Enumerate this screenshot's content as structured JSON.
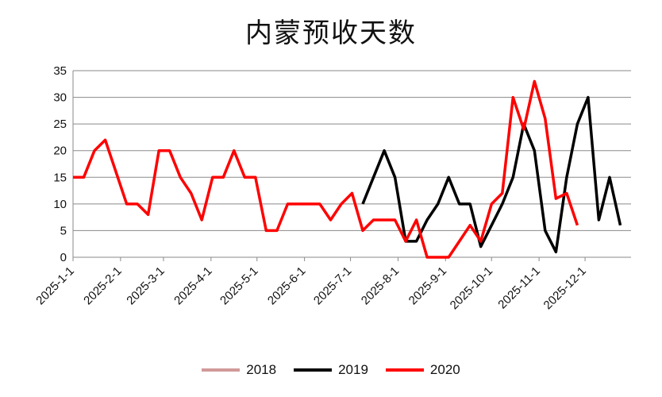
{
  "chart_data": {
    "type": "line",
    "title": "内蒙预收天数",
    "xlabel": "",
    "ylabel": "",
    "ylim": [
      0,
      35
    ],
    "yticks": [
      0,
      5,
      10,
      15,
      20,
      25,
      30,
      35
    ],
    "x_ticks": [
      "2025-1-1",
      "2025-2-1",
      "2025-3-1",
      "2025-4-1",
      "2025-5-1",
      "2025-6-1",
      "2025-7-1",
      "2025-8-1",
      "2025-9-1",
      "2025-10-1",
      "2025-11-1",
      "2025-12-1"
    ],
    "grid": "horizontal",
    "legend_position": "bottom",
    "series": [
      {
        "name": "2018",
        "color": "#d19a9a",
        "points": []
      },
      {
        "name": "2019",
        "color": "#000000",
        "points": [
          [
            "2025-7-9",
            10
          ],
          [
            "2025-7-16",
            15
          ],
          [
            "2025-7-23",
            20
          ],
          [
            "2025-7-30",
            15
          ],
          [
            "2025-8-6",
            3
          ],
          [
            "2025-8-13",
            3
          ],
          [
            "2025-8-20",
            7
          ],
          [
            "2025-8-27",
            10
          ],
          [
            "2025-9-3",
            15
          ],
          [
            "2025-9-10",
            10
          ],
          [
            "2025-9-17",
            10
          ],
          [
            "2025-9-24",
            2
          ],
          [
            "2025-10-1",
            6
          ],
          [
            "2025-10-8",
            10
          ],
          [
            "2025-10-15",
            15
          ],
          [
            "2025-10-22",
            25
          ],
          [
            "2025-10-29",
            20
          ],
          [
            "2025-11-5",
            5
          ],
          [
            "2025-11-12",
            1
          ],
          [
            "2025-11-19",
            15
          ],
          [
            "2025-11-26",
            25
          ],
          [
            "2025-12-3",
            30
          ],
          [
            "2025-12-10",
            7
          ],
          [
            "2025-12-17",
            15
          ],
          [
            "2025-12-24",
            6
          ]
        ]
      },
      {
        "name": "2020",
        "color": "#ff0000",
        "points": [
          [
            "2025-1-1",
            15
          ],
          [
            "2025-1-8",
            15
          ],
          [
            "2025-1-15",
            20
          ],
          [
            "2025-1-22",
            22
          ],
          [
            "2025-1-29",
            16
          ],
          [
            "2025-2-5",
            10
          ],
          [
            "2025-2-12",
            10
          ],
          [
            "2025-2-19",
            8
          ],
          [
            "2025-2-26",
            20
          ],
          [
            "2025-3-5",
            20
          ],
          [
            "2025-3-12",
            15
          ],
          [
            "2025-3-19",
            12
          ],
          [
            "2025-3-26",
            7
          ],
          [
            "2025-4-2",
            15
          ],
          [
            "2025-4-9",
            15
          ],
          [
            "2025-4-16",
            20
          ],
          [
            "2025-4-23",
            15
          ],
          [
            "2025-4-30",
            15
          ],
          [
            "2025-5-7",
            5
          ],
          [
            "2025-5-14",
            5
          ],
          [
            "2025-5-21",
            10
          ],
          [
            "2025-5-28",
            10
          ],
          [
            "2025-6-4",
            10
          ],
          [
            "2025-6-11",
            10
          ],
          [
            "2025-6-18",
            7
          ],
          [
            "2025-6-25",
            10
          ],
          [
            "2025-7-2",
            12
          ],
          [
            "2025-7-9",
            5
          ],
          [
            "2025-7-16",
            7
          ],
          [
            "2025-7-23",
            7
          ],
          [
            "2025-7-30",
            7
          ],
          [
            "2025-8-6",
            3
          ],
          [
            "2025-8-13",
            7
          ],
          [
            "2025-8-20",
            0
          ],
          [
            "2025-8-27",
            0
          ],
          [
            "2025-9-3",
            0
          ],
          [
            "2025-9-10",
            3
          ],
          [
            "2025-9-17",
            6
          ],
          [
            "2025-9-24",
            3
          ],
          [
            "2025-10-1",
            10
          ],
          [
            "2025-10-8",
            12
          ],
          [
            "2025-10-15",
            30
          ],
          [
            "2025-10-22",
            24
          ],
          [
            "2025-10-29",
            33
          ],
          [
            "2025-11-5",
            26
          ],
          [
            "2025-11-12",
            11
          ],
          [
            "2025-11-19",
            12
          ],
          [
            "2025-11-26",
            6
          ]
        ]
      }
    ]
  }
}
